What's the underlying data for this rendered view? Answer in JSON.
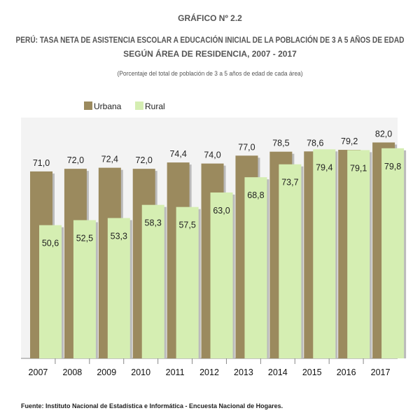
{
  "header": {
    "chart_number": "GRÁFICO Nº 2.2",
    "title_line1": "PERÚ: TASA NETA DE ASISTENCIA ESCOLAR A EDUCACIÓN INICIAL DE LA POBLACIÓN  DE 3 A 5 AÑOS DE EDAD",
    "title_line2": "SEGÚN ÁREA DE RESIDENCIA, 2007 - 2017",
    "subtitle": "(Porcentaje del total de población de 3 a 5 años de edad de cada área)"
  },
  "source": "Fuente: Instituto Nacional de Estadística e Informática - Encuesta Nacional  de Hogares.",
  "colors": {
    "urbana": "#9b8a5e",
    "rural": "#d5eeb2",
    "background": "#f3f3f3",
    "shadow": "#bbbbbb"
  },
  "chart_data": {
    "type": "bar",
    "categories": [
      "2007",
      "2008",
      "2009",
      "2010",
      "2011",
      "2012",
      "2013",
      "2014",
      "2015",
      "2016",
      "2017"
    ],
    "series": [
      {
        "name": "Urbana",
        "values": [
          71.0,
          72.0,
          72.4,
          72.0,
          74.4,
          74.0,
          77.0,
          78.5,
          78.6,
          79.2,
          82.0
        ],
        "labels": [
          "71,0",
          "72,0",
          "72,4",
          "72,0",
          "74,4",
          "74,0",
          "77,0",
          "78,5",
          "78,6",
          "79,2",
          "82,0"
        ]
      },
      {
        "name": "Rural",
        "values": [
          50.6,
          52.5,
          53.3,
          58.3,
          57.5,
          63.0,
          68.8,
          73.7,
          79.4,
          79.1,
          79.8
        ],
        "labels": [
          "50,6",
          "52,5",
          "53,3",
          "58,3",
          "57,5",
          "63,0",
          "68,8",
          "73,7",
          "79,4",
          "79,1",
          "79,8"
        ]
      }
    ],
    "ylim": [
      0,
      100
    ],
    "grid": false,
    "legend": "top-left"
  }
}
